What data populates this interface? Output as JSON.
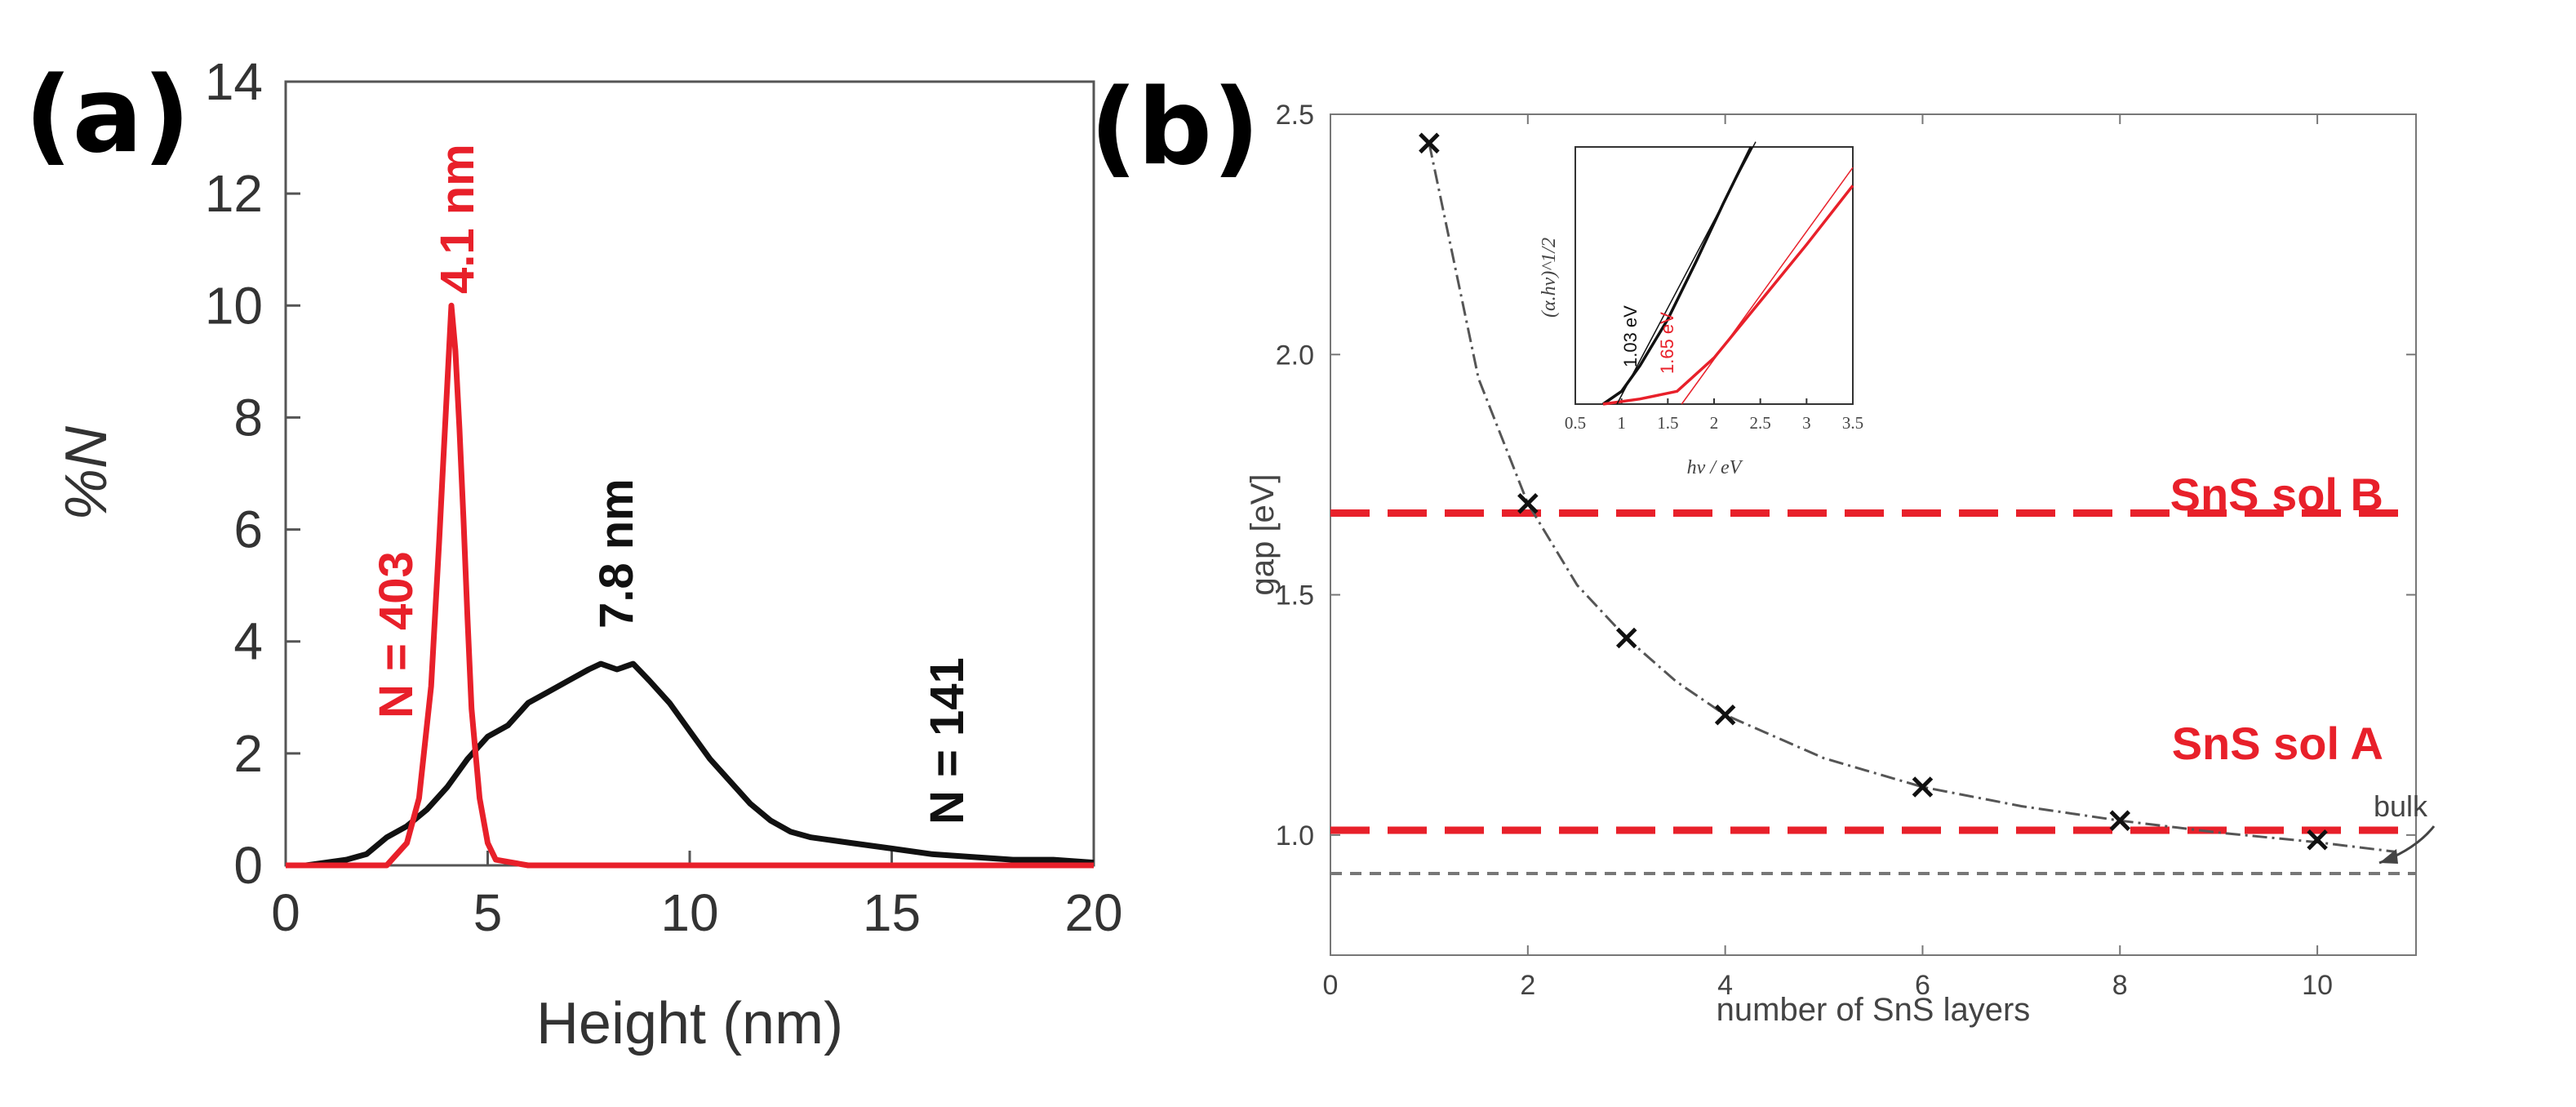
{
  "chart_data": [
    {
      "panel": "(a)",
      "type": "line",
      "xlabel": "Height (nm)",
      "ylabel": "%N",
      "xlim": [
        0,
        20
      ],
      "ylim": [
        0,
        14
      ],
      "xticks": [
        0,
        5,
        10,
        15,
        20
      ],
      "yticks": [
        0,
        2,
        4,
        6,
        8,
        10,
        12,
        14
      ],
      "series": [
        {
          "name": "N = 403",
          "color": "#e8202a",
          "peak_label": "4.1 nm",
          "x": [
            0,
            2.5,
            3.0,
            3.3,
            3.6,
            3.8,
            3.9,
            4.0,
            4.1,
            4.2,
            4.3,
            4.4,
            4.5,
            4.6,
            4.8,
            5.0,
            5.2,
            6.0,
            10,
            20
          ],
          "y": [
            0,
            0,
            0.4,
            1.2,
            3.2,
            5.8,
            7.2,
            8.6,
            10.0,
            9.2,
            7.8,
            6.2,
            4.4,
            2.8,
            1.2,
            0.4,
            0.1,
            0,
            0,
            0
          ]
        },
        {
          "name": "N = 141",
          "color": "#111111",
          "peak_label": "7.8 nm",
          "x": [
            0.5,
            1.5,
            2.0,
            2.5,
            3.0,
            3.5,
            4.0,
            4.5,
            5.0,
            5.5,
            6.0,
            6.5,
            7.0,
            7.5,
            7.8,
            8.2,
            8.6,
            9.0,
            9.5,
            10.0,
            10.5,
            11.0,
            11.5,
            12.0,
            12.5,
            13.0,
            14.0,
            15.0,
            16.0,
            17.0,
            18.0,
            19.0,
            20.0
          ],
          "y": [
            0.0,
            0.1,
            0.2,
            0.5,
            0.7,
            1.0,
            1.4,
            1.9,
            2.3,
            2.5,
            2.9,
            3.1,
            3.3,
            3.5,
            3.6,
            3.5,
            3.6,
            3.3,
            2.9,
            2.4,
            1.9,
            1.5,
            1.1,
            0.8,
            0.6,
            0.5,
            0.4,
            0.3,
            0.2,
            0.15,
            0.1,
            0.1,
            0.05
          ]
        }
      ],
      "annotations": [
        {
          "text": "4.1 nm",
          "color": "#e8202a"
        },
        {
          "text": "N = 403",
          "color": "#e8202a"
        },
        {
          "text": "7.8 nm",
          "color": "#111111"
        },
        {
          "text": "N = 141",
          "color": "#111111"
        }
      ]
    },
    {
      "panel": "(b)",
      "type": "scatter",
      "xlabel": "number of SnS layers",
      "ylabel": "gap [eV]",
      "xlim": [
        0,
        11
      ],
      "ylim": [
        0.75,
        2.5
      ],
      "xticks": [
        0,
        2,
        4,
        6,
        8,
        10
      ],
      "yticks": [
        1.0,
        1.5,
        2.0,
        2.5
      ],
      "ytick_labels": [
        "1.0",
        "1.5",
        "2.0",
        "2.5"
      ],
      "points": {
        "x": [
          1,
          2,
          3,
          4,
          6,
          8,
          10
        ],
        "y": [
          2.44,
          1.69,
          1.41,
          1.25,
          1.1,
          1.03,
          0.99
        ]
      },
      "fit_curve": {
        "x": [
          1,
          1.5,
          2,
          2.5,
          3,
          3.5,
          4,
          5,
          6,
          7,
          8,
          9,
          10,
          10.8
        ],
        "y": [
          2.44,
          1.95,
          1.69,
          1.52,
          1.41,
          1.32,
          1.25,
          1.16,
          1.1,
          1.06,
          1.03,
          1.005,
          0.985,
          0.965
        ]
      },
      "reference_lines": [
        {
          "label": "SnS sol B",
          "y": 1.67,
          "color": "#e8202a"
        },
        {
          "label": "SnS sol A",
          "y": 1.01,
          "color": "#e8202a"
        },
        {
          "label": "bulk",
          "y": 0.92,
          "color": "#777777"
        }
      ],
      "inset": {
        "xlabel": "hν / eV",
        "ylabel": "(α.hν)^1/2",
        "xlim": [
          0.5,
          3.5
        ],
        "xticks": [
          "0.5",
          "1",
          "1.5",
          "2",
          "2.5",
          "3",
          "3.5"
        ],
        "curves": [
          {
            "label": "1.03 eV",
            "color": "#111111",
            "x": [
              0.8,
              1.0,
              1.2,
              1.5,
              1.8,
              2.1,
              2.4
            ],
            "y": [
              0.0,
              0.05,
              0.15,
              0.33,
              0.55,
              0.78,
              1.0
            ]
          },
          {
            "label": "1.65 eV",
            "color": "#e8202a",
            "x": [
              0.8,
              1.2,
              1.6,
              2.0,
              2.5,
              3.0,
              3.5
            ],
            "y": [
              0.0,
              0.02,
              0.05,
              0.18,
              0.4,
              0.62,
              0.85
            ]
          }
        ]
      }
    }
  ]
}
